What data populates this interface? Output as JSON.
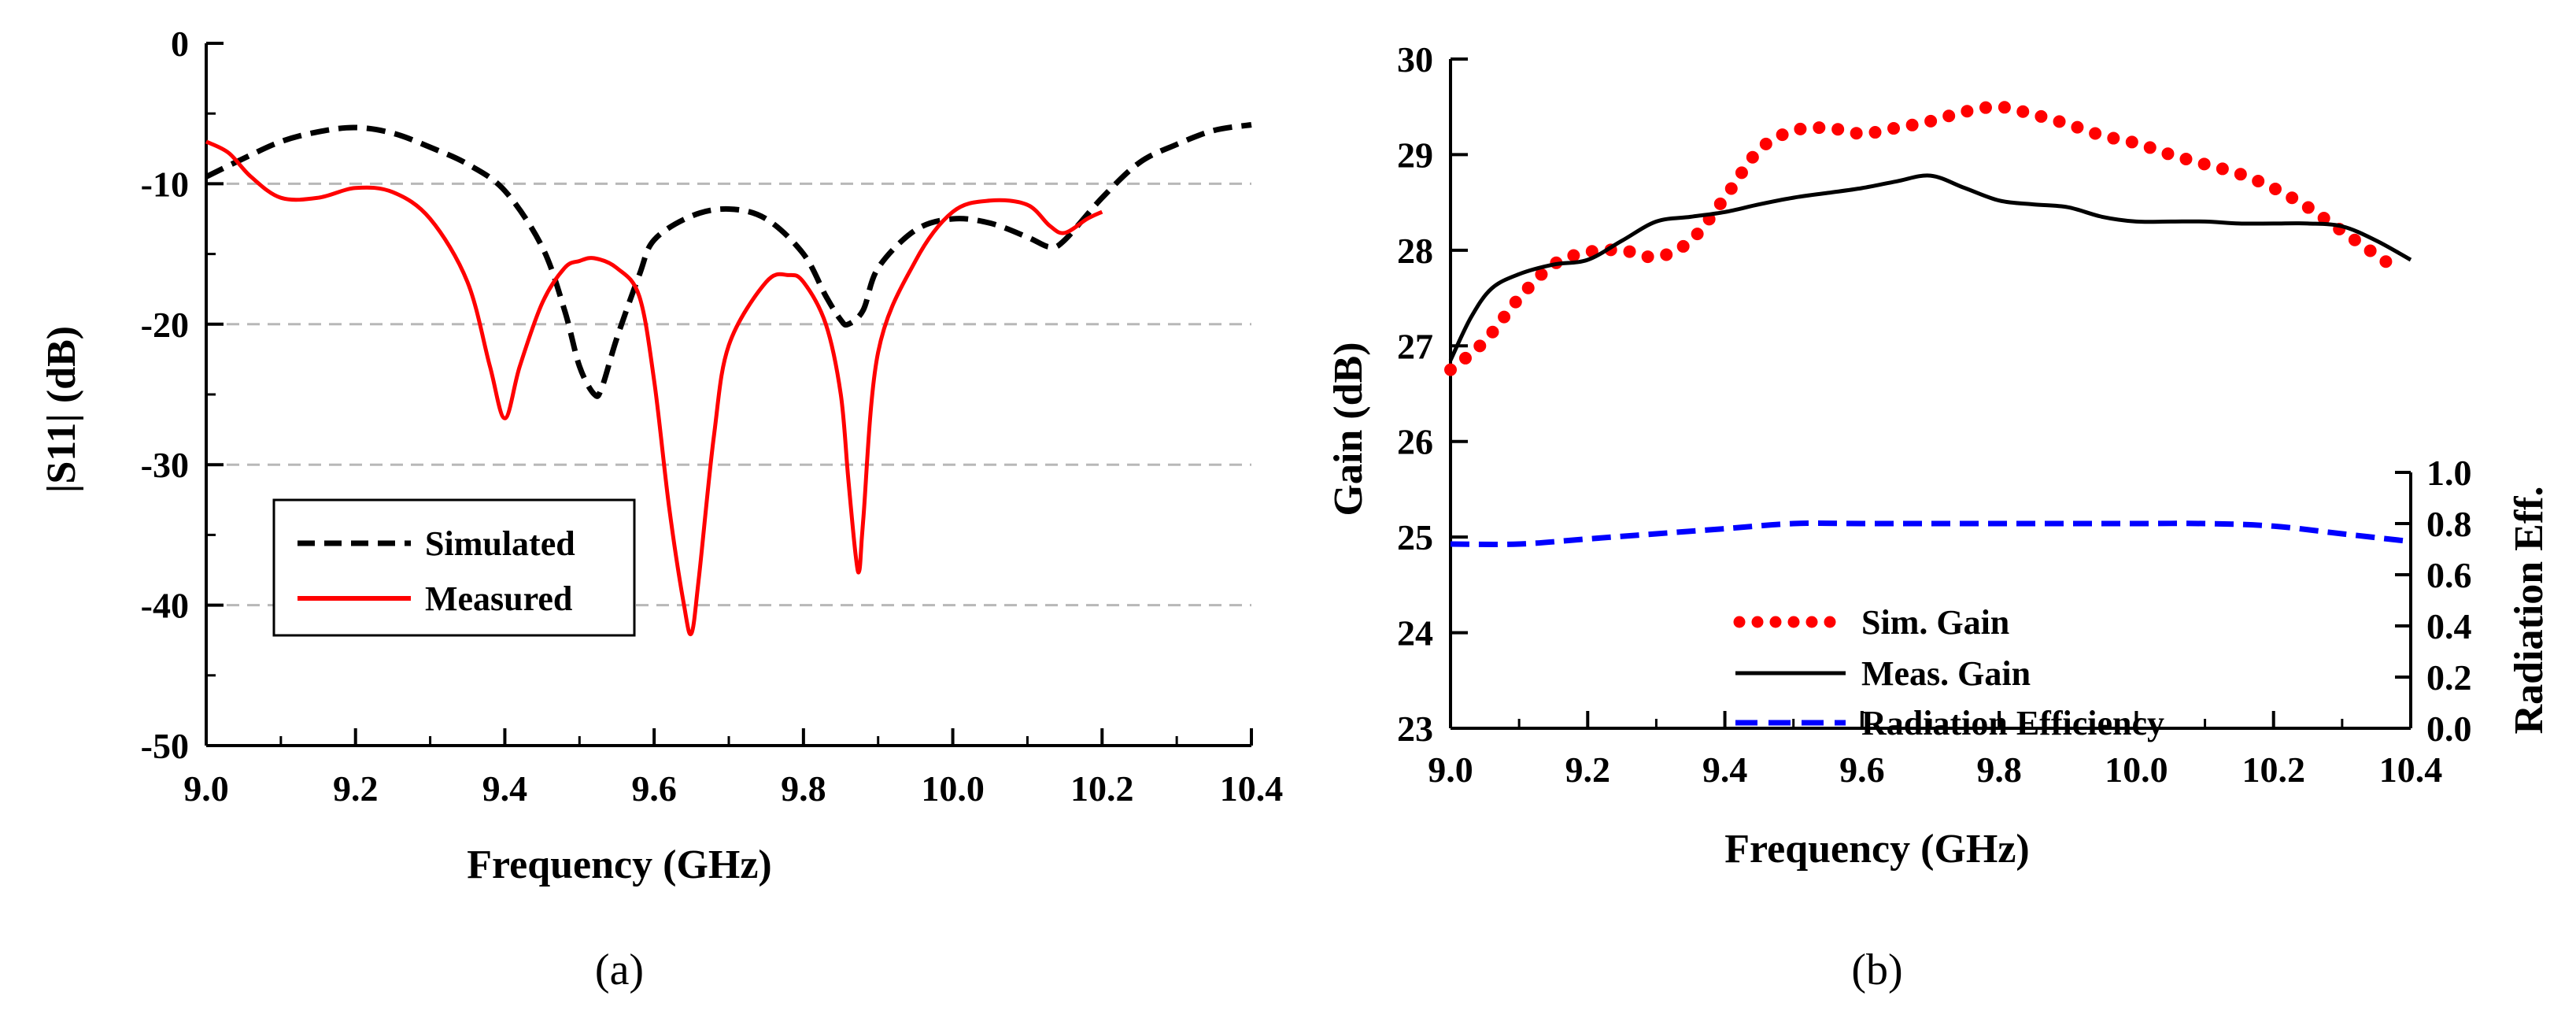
{
  "chart_data": [
    {
      "type": "line",
      "panel_label": "(a)",
      "xlabel": "Frequency (GHz)",
      "ylabel": "|S11| (dB)",
      "xlim": [
        9.0,
        10.4
      ],
      "ylim": [
        -50,
        0
      ],
      "x_ticks": [
        "9.0",
        "9.2",
        "9.4",
        "9.6",
        "9.8",
        "10.0",
        "10.2",
        "10.4"
      ],
      "y_ticks": [
        "0",
        "-10",
        "-20",
        "-30",
        "-40",
        "-50"
      ],
      "grid": "horizontal dashed",
      "legend": "lower-left",
      "series": [
        {
          "name": "Simulated",
          "color": "#000000",
          "style": "dashed",
          "x": [
            9.0,
            9.05,
            9.1,
            9.15,
            9.2,
            9.25,
            9.3,
            9.35,
            9.4,
            9.45,
            9.48,
            9.5,
            9.52,
            9.53,
            9.55,
            9.58,
            9.6,
            9.65,
            9.7,
            9.75,
            9.8,
            9.83,
            9.85,
            9.86,
            9.88,
            9.9,
            9.95,
            10.0,
            10.05,
            10.1,
            10.13,
            10.15,
            10.2,
            10.25,
            10.3,
            10.35,
            10.4
          ],
          "y": [
            -9.5,
            -8.2,
            -7.0,
            -6.3,
            -6.0,
            -6.4,
            -7.4,
            -8.6,
            -10.5,
            -14.5,
            -19.0,
            -23.0,
            -25.0,
            -24.5,
            -21.0,
            -16.5,
            -14.0,
            -12.3,
            -11.8,
            -12.5,
            -15.0,
            -18.0,
            -19.7,
            -20.0,
            -19.0,
            -16.0,
            -13.3,
            -12.5,
            -12.8,
            -13.8,
            -14.5,
            -14.0,
            -11.0,
            -8.5,
            -7.2,
            -6.2,
            -5.8
          ]
        },
        {
          "name": "Measured",
          "color": "#ff0000",
          "style": "solid",
          "x": [
            9.0,
            9.03,
            9.06,
            9.1,
            9.15,
            9.2,
            9.25,
            9.3,
            9.35,
            9.38,
            9.4,
            9.42,
            9.45,
            9.48,
            9.5,
            9.52,
            9.55,
            9.58,
            9.6,
            9.62,
            9.64,
            9.65,
            9.66,
            9.68,
            9.7,
            9.75,
            9.78,
            9.8,
            9.83,
            9.85,
            9.86,
            9.87,
            9.875,
            9.88,
            9.9,
            9.95,
            10.0,
            10.05,
            10.1,
            10.13,
            10.15,
            10.18,
            10.2
          ],
          "y": [
            -7.0,
            -7.8,
            -9.5,
            -11.0,
            -11.0,
            -10.3,
            -10.6,
            -12.5,
            -17.0,
            -23.0,
            -26.7,
            -23.0,
            -18.5,
            -16.0,
            -15.5,
            -15.3,
            -16.0,
            -18.0,
            -24.0,
            -33.0,
            -40.0,
            -42.0,
            -38.0,
            -28.0,
            -21.5,
            -17.0,
            -16.5,
            -17.0,
            -20.0,
            -25.0,
            -31.0,
            -36.5,
            -37.5,
            -34.0,
            -22.0,
            -15.5,
            -12.0,
            -11.2,
            -11.5,
            -13.0,
            -13.5,
            -12.5,
            -12.0
          ]
        }
      ]
    },
    {
      "type": "line",
      "panel_label": "(b)",
      "xlabel": "Frequency (GHz)",
      "ylabel": "Gain (dB)",
      "y2label": "Radiation Eff.",
      "xlim": [
        9.0,
        10.4
      ],
      "ylim": [
        23,
        30
      ],
      "y2lim": [
        0.0,
        1.0
      ],
      "x_ticks": [
        "9.0",
        "9.2",
        "9.4",
        "9.6",
        "9.8",
        "10.0",
        "10.2",
        "10.4"
      ],
      "y_ticks": [
        "23",
        "24",
        "25",
        "26",
        "27",
        "28",
        "29",
        "30"
      ],
      "y2_ticks": [
        "0.0",
        "0.2",
        "0.4",
        "0.6",
        "0.8",
        "1.0"
      ],
      "grid": "none",
      "legend": "bottom-center",
      "series": [
        {
          "name": "Sim. Gain",
          "color": "#ff0000",
          "style": "dotted",
          "axis": "left",
          "x": [
            9.0,
            9.05,
            9.1,
            9.15,
            9.2,
            9.25,
            9.3,
            9.35,
            9.4,
            9.45,
            9.5,
            9.55,
            9.6,
            9.65,
            9.7,
            9.75,
            9.8,
            9.85,
            9.9,
            9.95,
            10.0,
            10.05,
            10.1,
            10.15,
            10.2,
            10.25,
            10.3,
            10.35,
            10.38
          ],
          "y": [
            26.75,
            27.05,
            27.5,
            27.85,
            27.98,
            28.0,
            27.93,
            28.1,
            28.55,
            29.05,
            29.25,
            29.28,
            29.22,
            29.28,
            29.35,
            29.45,
            29.5,
            29.42,
            29.32,
            29.2,
            29.12,
            29.0,
            28.9,
            28.8,
            28.65,
            28.45,
            28.2,
            27.95,
            27.8
          ]
        },
        {
          "name": "Meas. Gain",
          "color": "#000000",
          "style": "solid",
          "axis": "left",
          "x": [
            9.0,
            9.03,
            9.06,
            9.1,
            9.15,
            9.2,
            9.25,
            9.3,
            9.35,
            9.4,
            9.45,
            9.5,
            9.55,
            9.6,
            9.65,
            9.7,
            9.75,
            9.8,
            9.85,
            9.9,
            9.95,
            10.0,
            10.05,
            10.1,
            10.15,
            10.2,
            10.25,
            10.3,
            10.35,
            10.4
          ],
          "y": [
            26.85,
            27.3,
            27.6,
            27.75,
            27.85,
            27.9,
            28.1,
            28.3,
            28.35,
            28.4,
            28.48,
            28.55,
            28.6,
            28.65,
            28.72,
            28.78,
            28.65,
            28.52,
            28.48,
            28.45,
            28.35,
            28.3,
            28.3,
            28.3,
            28.28,
            28.28,
            28.28,
            28.25,
            28.1,
            27.9
          ]
        },
        {
          "name": "Radiation Efficiency",
          "color": "#0000ff",
          "style": "dashed",
          "axis": "right",
          "x": [
            9.0,
            9.1,
            9.2,
            9.3,
            9.4,
            9.5,
            9.6,
            9.7,
            9.8,
            9.9,
            10.0,
            10.1,
            10.2,
            10.3,
            10.4
          ],
          "y": [
            0.72,
            0.72,
            0.74,
            0.76,
            0.78,
            0.8,
            0.8,
            0.8,
            0.8,
            0.8,
            0.8,
            0.8,
            0.79,
            0.76,
            0.73
          ]
        }
      ]
    }
  ]
}
